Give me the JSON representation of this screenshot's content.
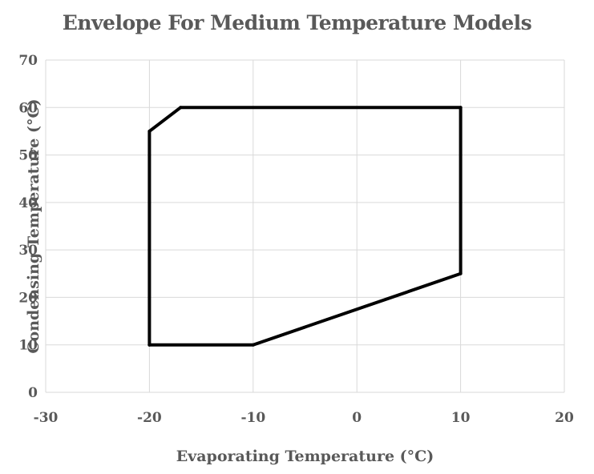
{
  "chart_data": {
    "type": "scatter",
    "title": "Envelope For Medium Temperature Models",
    "xlabel": "Evaporating Temperature (°C)",
    "ylabel": "Condensing Temperature (°C)",
    "xlim": [
      -30,
      20
    ],
    "ylim": [
      0,
      70
    ],
    "xticks": [
      -30,
      -20,
      -10,
      0,
      10,
      20
    ],
    "yticks": [
      0,
      10,
      20,
      30,
      40,
      50,
      60,
      70
    ],
    "grid": true,
    "legend": "none",
    "series": [
      {
        "color": "#000000",
        "line": true,
        "points": [
          {
            "x": -20,
            "y": 10
          },
          {
            "x": -20,
            "y": 55
          },
          {
            "x": -17,
            "y": 60
          },
          {
            "x": 10,
            "y": 60
          },
          {
            "x": 10,
            "y": 25
          },
          {
            "x": -10,
            "y": 10
          },
          {
            "x": -20,
            "y": 10
          }
        ]
      }
    ],
    "colors": {
      "grid": "#d9d9d9",
      "text": "#595959",
      "line": "#000000"
    }
  }
}
